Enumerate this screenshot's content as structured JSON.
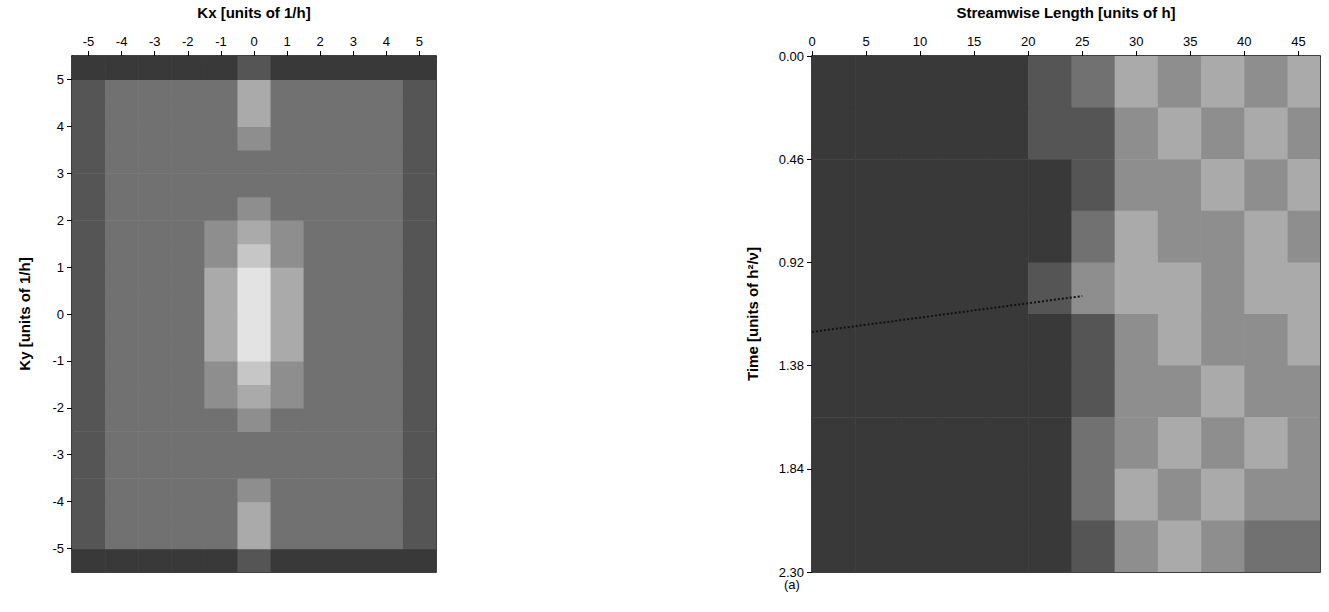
{
  "chart_data": [
    {
      "type": "heatmap",
      "x_label": "Kx [units of 1/h]",
      "y_label": "Ky [units of 1/h]",
      "xlim": [
        -5.5,
        5.5
      ],
      "ylim": [
        -5.5,
        5.5
      ],
      "xticks": [
        -5,
        -4,
        -3,
        -2,
        -1,
        0,
        1,
        2,
        3,
        4,
        5
      ],
      "yticks": [
        -5,
        -4,
        -3,
        -2,
        -1,
        0,
        1,
        2,
        3,
        4,
        5
      ],
      "x_edges": [
        -5.5,
        -4.5,
        -3.5,
        -2.5,
        -1.5,
        -0.5,
        0.5,
        1.5,
        2.5,
        3.5,
        4.5,
        5.5
      ],
      "y_edges": [
        -5.5,
        -5,
        -4.5,
        -4,
        -3.5,
        -3,
        -2.5,
        -2,
        -1.5,
        -1,
        -0.5,
        0,
        0.5,
        1,
        1.5,
        2,
        2.5,
        3,
        3.5,
        4,
        4.5,
        5,
        5.5
      ],
      "value_range": [
        0,
        9
      ],
      "values": [
        [
          2,
          2,
          2,
          2,
          2,
          3,
          2,
          2,
          2,
          2,
          2
        ],
        [
          3,
          4,
          4,
          4,
          4,
          6,
          4,
          4,
          4,
          4,
          3
        ],
        [
          3,
          4,
          4,
          4,
          4,
          6,
          4,
          4,
          4,
          4,
          3
        ],
        [
          3,
          4,
          4,
          4,
          4,
          5,
          4,
          4,
          4,
          4,
          3
        ],
        [
          3,
          4,
          4,
          4,
          4,
          4,
          4,
          4,
          4,
          4,
          3
        ],
        [
          3,
          4,
          4,
          4,
          4,
          4,
          4,
          4,
          4,
          4,
          3
        ],
        [
          3,
          4,
          4,
          4,
          4,
          5,
          4,
          4,
          4,
          4,
          3
        ],
        [
          3,
          4,
          4,
          4,
          5,
          6,
          5,
          4,
          4,
          4,
          3
        ],
        [
          3,
          4,
          4,
          4,
          5,
          7,
          5,
          4,
          4,
          4,
          3
        ],
        [
          3,
          4,
          4,
          4,
          6,
          8,
          6,
          4,
          4,
          4,
          3
        ],
        [
          3,
          4,
          4,
          4,
          6,
          8,
          6,
          4,
          4,
          4,
          3
        ],
        [
          3,
          4,
          4,
          4,
          6,
          8,
          6,
          4,
          4,
          4,
          3
        ],
        [
          3,
          4,
          4,
          4,
          6,
          8,
          6,
          4,
          4,
          4,
          3
        ],
        [
          3,
          4,
          4,
          4,
          5,
          7,
          5,
          4,
          4,
          4,
          3
        ],
        [
          3,
          4,
          4,
          4,
          5,
          6,
          5,
          4,
          4,
          4,
          3
        ],
        [
          3,
          4,
          4,
          4,
          4,
          5,
          4,
          4,
          4,
          4,
          3
        ],
        [
          3,
          4,
          4,
          4,
          4,
          4,
          4,
          4,
          4,
          4,
          3
        ],
        [
          3,
          4,
          4,
          4,
          4,
          4,
          4,
          4,
          4,
          4,
          3
        ],
        [
          3,
          4,
          4,
          4,
          4,
          5,
          4,
          4,
          4,
          4,
          3
        ],
        [
          3,
          4,
          4,
          4,
          4,
          6,
          4,
          4,
          4,
          4,
          3
        ],
        [
          3,
          4,
          4,
          4,
          4,
          6,
          4,
          4,
          4,
          4,
          3
        ],
        [
          2,
          2,
          2,
          2,
          2,
          3,
          2,
          2,
          2,
          2,
          2
        ]
      ]
    },
    {
      "type": "heatmap",
      "annotation": "(a)",
      "x_label": "Streamwise Length [units of h]",
      "y_label": "Time [units of h²/ν]",
      "xlim": [
        0,
        47
      ],
      "ylim": [
        0,
        2.3
      ],
      "xticks": [
        0,
        5,
        10,
        15,
        20,
        25,
        30,
        35,
        40,
        45
      ],
      "yticks": [
        {
          "value": 0,
          "label": "0.00"
        },
        {
          "value": 0.46,
          "label": "0.46"
        },
        {
          "value": 0.92,
          "label": "0.92"
        },
        {
          "value": 1.38,
          "label": "1.38"
        },
        {
          "value": 1.84,
          "label": "1.84"
        },
        {
          "value": 2.3,
          "label": "2.30"
        }
      ],
      "x_edges": [
        0,
        4,
        8,
        12,
        16,
        20,
        24,
        28,
        32,
        36,
        40,
        44,
        47
      ],
      "y_edges": [
        0,
        0.23,
        0.46,
        0.69,
        0.92,
        1.15,
        1.38,
        1.61,
        1.84,
        2.07,
        2.3
      ],
      "value_range": [
        0,
        9
      ],
      "values": [
        [
          2,
          2,
          2,
          2,
          2,
          3,
          4,
          6,
          5,
          6,
          5,
          6
        ],
        [
          2,
          2,
          2,
          2,
          2,
          3,
          3,
          5,
          6,
          5,
          6,
          5
        ],
        [
          2,
          2,
          2,
          2,
          2,
          2,
          3,
          5,
          5,
          6,
          5,
          6
        ],
        [
          2,
          2,
          2,
          2,
          2,
          2,
          4,
          6,
          5,
          5,
          6,
          5
        ],
        [
          2,
          2,
          2,
          2,
          2,
          3,
          5,
          6,
          6,
          5,
          6,
          6
        ],
        [
          2,
          2,
          2,
          2,
          2,
          2,
          3,
          5,
          6,
          5,
          5,
          6
        ],
        [
          2,
          2,
          2,
          2,
          2,
          2,
          3,
          5,
          5,
          6,
          5,
          5
        ],
        [
          2,
          2,
          2,
          2,
          2,
          2,
          4,
          5,
          6,
          5,
          6,
          5
        ],
        [
          2,
          2,
          2,
          2,
          2,
          2,
          4,
          6,
          5,
          6,
          5,
          5
        ],
        [
          2,
          2,
          2,
          2,
          2,
          2,
          3,
          5,
          6,
          5,
          4,
          4
        ]
      ],
      "series": [
        {
          "type": "line",
          "line_style": "dotted",
          "color": "#111111",
          "x": [
            0,
            25
          ],
          "values": [
            1.23,
            1.07
          ]
        }
      ]
    }
  ]
}
